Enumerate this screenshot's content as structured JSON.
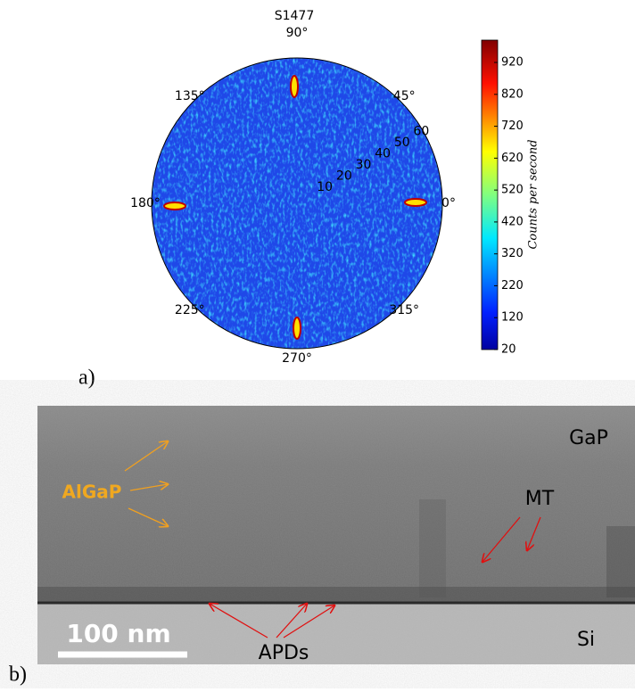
{
  "panel_a": {
    "label": "a)",
    "title": "S1477",
    "angle_labels": [
      {
        "value": 0,
        "label": "0°"
      },
      {
        "value": 45,
        "label": "45°"
      },
      {
        "value": 90,
        "label": "90°"
      },
      {
        "value": 135,
        "label": "135°"
      },
      {
        "value": 180,
        "label": "180°"
      },
      {
        "value": 225,
        "label": "225°"
      },
      {
        "value": 270,
        "label": "270°"
      },
      {
        "value": 315,
        "label": "315°"
      }
    ],
    "radial_labels": [
      10,
      20,
      30,
      40,
      50,
      60
    ],
    "colorbar": {
      "label": "Counts per second",
      "lim": [
        20,
        990
      ],
      "ticks": [
        20,
        120,
        220,
        320,
        420,
        520,
        620,
        720,
        820,
        920
      ]
    }
  },
  "panel_b": {
    "label": "b)",
    "top_layer": "GaP",
    "substrate": "Si",
    "algap": "AlGaP",
    "mt": "MT",
    "apds": "APDs",
    "scale_bar": "100 nm"
  }
}
